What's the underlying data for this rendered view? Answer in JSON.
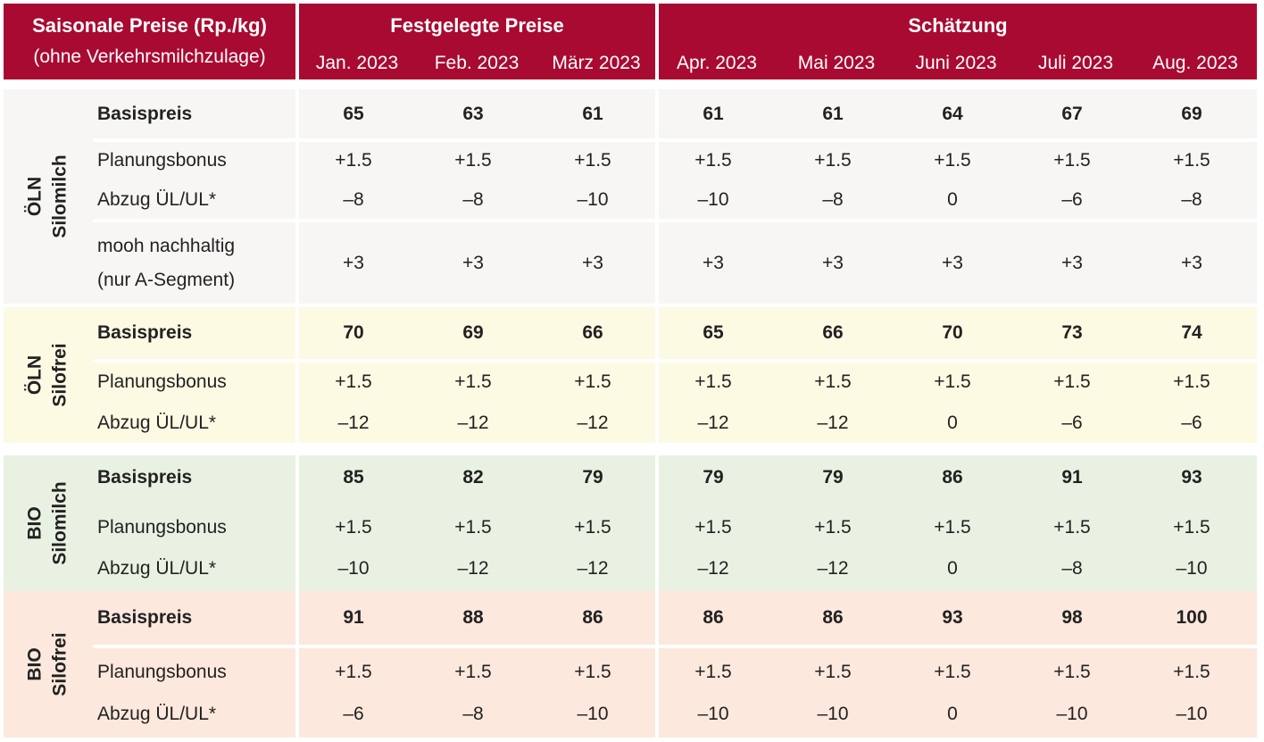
{
  "header": {
    "title_line1": "Saisonale Preise (Rp./kg)",
    "title_line2": "(ohne Verkehrsmilchzulage)",
    "group_fixed": "Festgelegte Preise",
    "group_estimate": "Schätzung",
    "months": [
      "Jan. 2023",
      "Feb. 2023",
      "März 2023",
      "Apr. 2023",
      "Mai 2023",
      "Juni 2023",
      "Juli 2023",
      "Aug. 2023"
    ]
  },
  "colors": {
    "header": "#a90a31",
    "oln_silomilch": "#f7f6f4",
    "oln_silofrei": "#fcfae3",
    "bio_silomilch": "#e9f2e2",
    "bio_silofrei": "#fce8dd"
  },
  "groups": [
    {
      "label_line1": "ÖLN",
      "label_line2": "Silomilch",
      "rows": [
        {
          "label": "Basispreis",
          "values": [
            "65",
            "63",
            "61",
            "61",
            "61",
            "64",
            "67",
            "69"
          ]
        },
        {
          "label": "Planungsbonus",
          "values": [
            "+1.5",
            "+1.5",
            "+1.5",
            "+1.5",
            "+1.5",
            "+1.5",
            "+1.5",
            "+1.5"
          ]
        },
        {
          "label": "Abzug ÜL/UL*",
          "values": [
            "–8",
            "–8",
            "–10",
            "–10",
            "–8",
            "0",
            "–6",
            "–8"
          ]
        },
        {
          "label_line1": "mooh nachhaltig",
          "label_line2": "(nur A-Segment)",
          "values": [
            "+3",
            "+3",
            "+3",
            "+3",
            "+3",
            "+3",
            "+3",
            "+3"
          ]
        }
      ]
    },
    {
      "label_line1": "ÖLN",
      "label_line2": "Silofrei",
      "rows": [
        {
          "label": "Basispreis",
          "values": [
            "70",
            "69",
            "66",
            "65",
            "66",
            "70",
            "73",
            "74"
          ]
        },
        {
          "label": "Planungsbonus",
          "values": [
            "+1.5",
            "+1.5",
            "+1.5",
            "+1.5",
            "+1.5",
            "+1.5",
            "+1.5",
            "+1.5"
          ]
        },
        {
          "label": "Abzug ÜL/UL*",
          "values": [
            "–12",
            "–12",
            "–12",
            "–12",
            "–12",
            "0",
            "–6",
            "–6"
          ]
        }
      ]
    },
    {
      "label_line1": "BIO",
      "label_line2": "Silomilch",
      "rows": [
        {
          "label": "Basispreis",
          "values": [
            "85",
            "82",
            "79",
            "79",
            "79",
            "86",
            "91",
            "93"
          ]
        },
        {
          "label": "Planungsbonus",
          "values": [
            "+1.5",
            "+1.5",
            "+1.5",
            "+1.5",
            "+1.5",
            "+1.5",
            "+1.5",
            "+1.5"
          ]
        },
        {
          "label": "Abzug ÜL/UL*",
          "values": [
            "–10",
            "–12",
            "–12",
            "–12",
            "–12",
            "0",
            "–8",
            "–10"
          ]
        }
      ]
    },
    {
      "label_line1": "BIO",
      "label_line2": "Silofrei",
      "rows": [
        {
          "label": "Basispreis",
          "values": [
            "91",
            "88",
            "86",
            "86",
            "86",
            "93",
            "98",
            "100"
          ]
        },
        {
          "label": "Planungsbonus",
          "values": [
            "+1.5",
            "+1.5",
            "+1.5",
            "+1.5",
            "+1.5",
            "+1.5",
            "+1.5",
            "+1.5"
          ]
        },
        {
          "label": "Abzug ÜL/UL*",
          "values": [
            "–6",
            "–8",
            "–10",
            "–10",
            "–10",
            "0",
            "–10",
            "–10"
          ]
        }
      ]
    }
  ]
}
